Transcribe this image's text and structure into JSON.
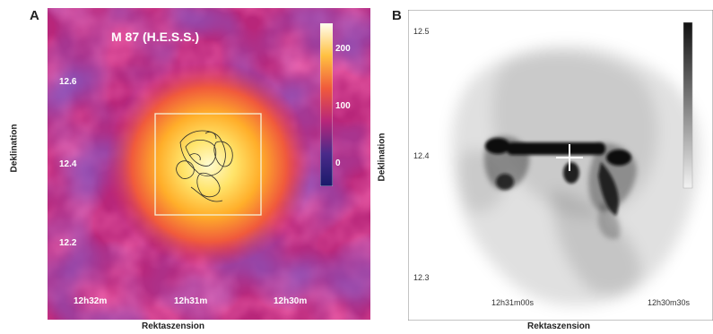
{
  "panel_a": {
    "label": "A",
    "title": "M 87 (H.E.S.S.)",
    "y_ticks": [
      "12.6",
      "12.4",
      "12.2"
    ],
    "x_ticks": [
      "12h32m",
      "12h31m",
      "12h30m"
    ],
    "colorbar_ticks": [
      "200",
      "100",
      "0"
    ],
    "xlabel": "Rektaszension",
    "ylabel": "Deklination"
  },
  "panel_b": {
    "label": "B",
    "y_ticks": [
      "12.5",
      "12.4",
      "12.3"
    ],
    "x_ticks": [
      "12h31m00s",
      "12h30m30s"
    ],
    "xlabel": "Rektaszension",
    "ylabel": "Deklination"
  }
}
